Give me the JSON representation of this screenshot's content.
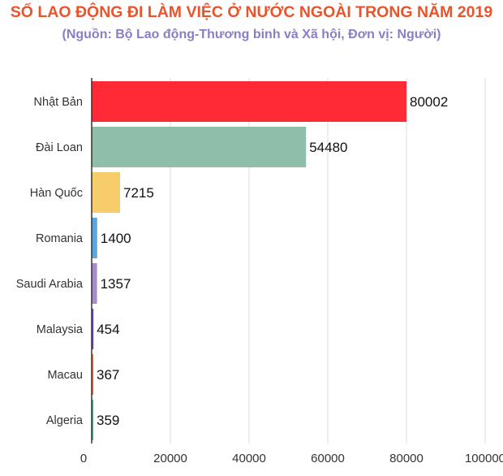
{
  "chart_data": {
    "type": "bar",
    "orientation": "horizontal",
    "title": "SỐ LAO ĐỘNG ĐI LÀM VIỆC Ở NƯỚC NGOÀI TRONG NĂM 2019",
    "subtitle": "(Nguồn:  Bộ Lao động-Thương binh và Xã hội, Đơn vị: Người)",
    "categories": [
      "Nhật Bản",
      "Đài Loan",
      "Hàn Quốc",
      "Romania",
      "Saudi Arabia",
      "Malaysia",
      "Macau",
      "Algeria"
    ],
    "values": [
      80002,
      54480,
      7215,
      1400,
      1357,
      454,
      367,
      359
    ],
    "colors": [
      "#ff2a36",
      "#8fbfaa",
      "#f7cc6a",
      "#5aa7e0",
      "#a78ec7",
      "#6a4cc0",
      "#e8765a",
      "#5fb39a"
    ],
    "xlim": [
      0,
      100000
    ],
    "xticks": [
      0,
      20000,
      40000,
      60000,
      80000,
      100000
    ],
    "grid": true,
    "legend": "none"
  }
}
